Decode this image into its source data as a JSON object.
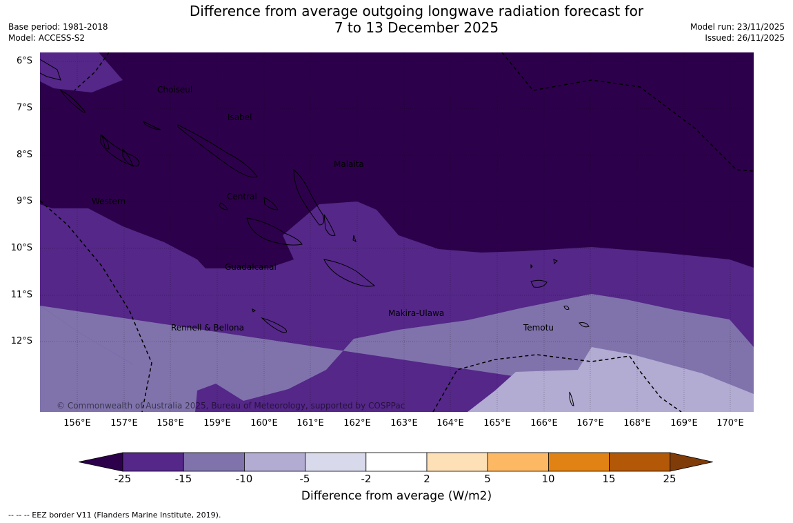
{
  "header": {
    "title_line1": "Difference from average outgoing longwave radiation forecast for",
    "title_line2": "7 to 13 December 2025",
    "base_period": "Base period: 1981-2018",
    "model": "Model: ACCESS-S2",
    "model_run": "Model run: 23/11/2025",
    "issued": "Issued: 26/11/2025"
  },
  "map": {
    "lat_labels": [
      "6°S",
      "7°S",
      "8°S",
      "9°S",
      "10°S",
      "11°S",
      "12°S"
    ],
    "lon_labels": [
      "156°E",
      "157°E",
      "158°E",
      "159°E",
      "160°E",
      "161°E",
      "162°E",
      "163°E",
      "164°E",
      "165°E",
      "166°E",
      "167°E",
      "168°E",
      "169°E",
      "170°E"
    ],
    "regions": {
      "choiseul": "Choiseul",
      "isabel": "Isabel",
      "malaita": "Malaita",
      "western": "Western",
      "central": "Central",
      "guadalcanal": "Guadalcanal",
      "makira": "Makira-Ulawa",
      "rennell": "Rennell & Bellona",
      "temotu": "Temotu"
    },
    "copyright": "© Commonwealth of Australia 2025, Bureau of Meteorology, supported by COSPPac"
  },
  "colorbar": {
    "title": "Difference from average (W/m2)",
    "ticks": [
      "-25",
      "-15",
      "-10",
      "-5",
      "-2",
      "2",
      "5",
      "10",
      "15",
      "25"
    ],
    "colors": [
      "#2d004b",
      "#542788",
      "#8073ac",
      "#b2abd2",
      "#d8daeb",
      "#ffffff",
      "#fee0b6",
      "#fdb863",
      "#e08214",
      "#b35806",
      "#7f3b08"
    ]
  },
  "footnote": "--  --  -- EEZ border V11 (Flanders Marine Institute, 2019)."
}
